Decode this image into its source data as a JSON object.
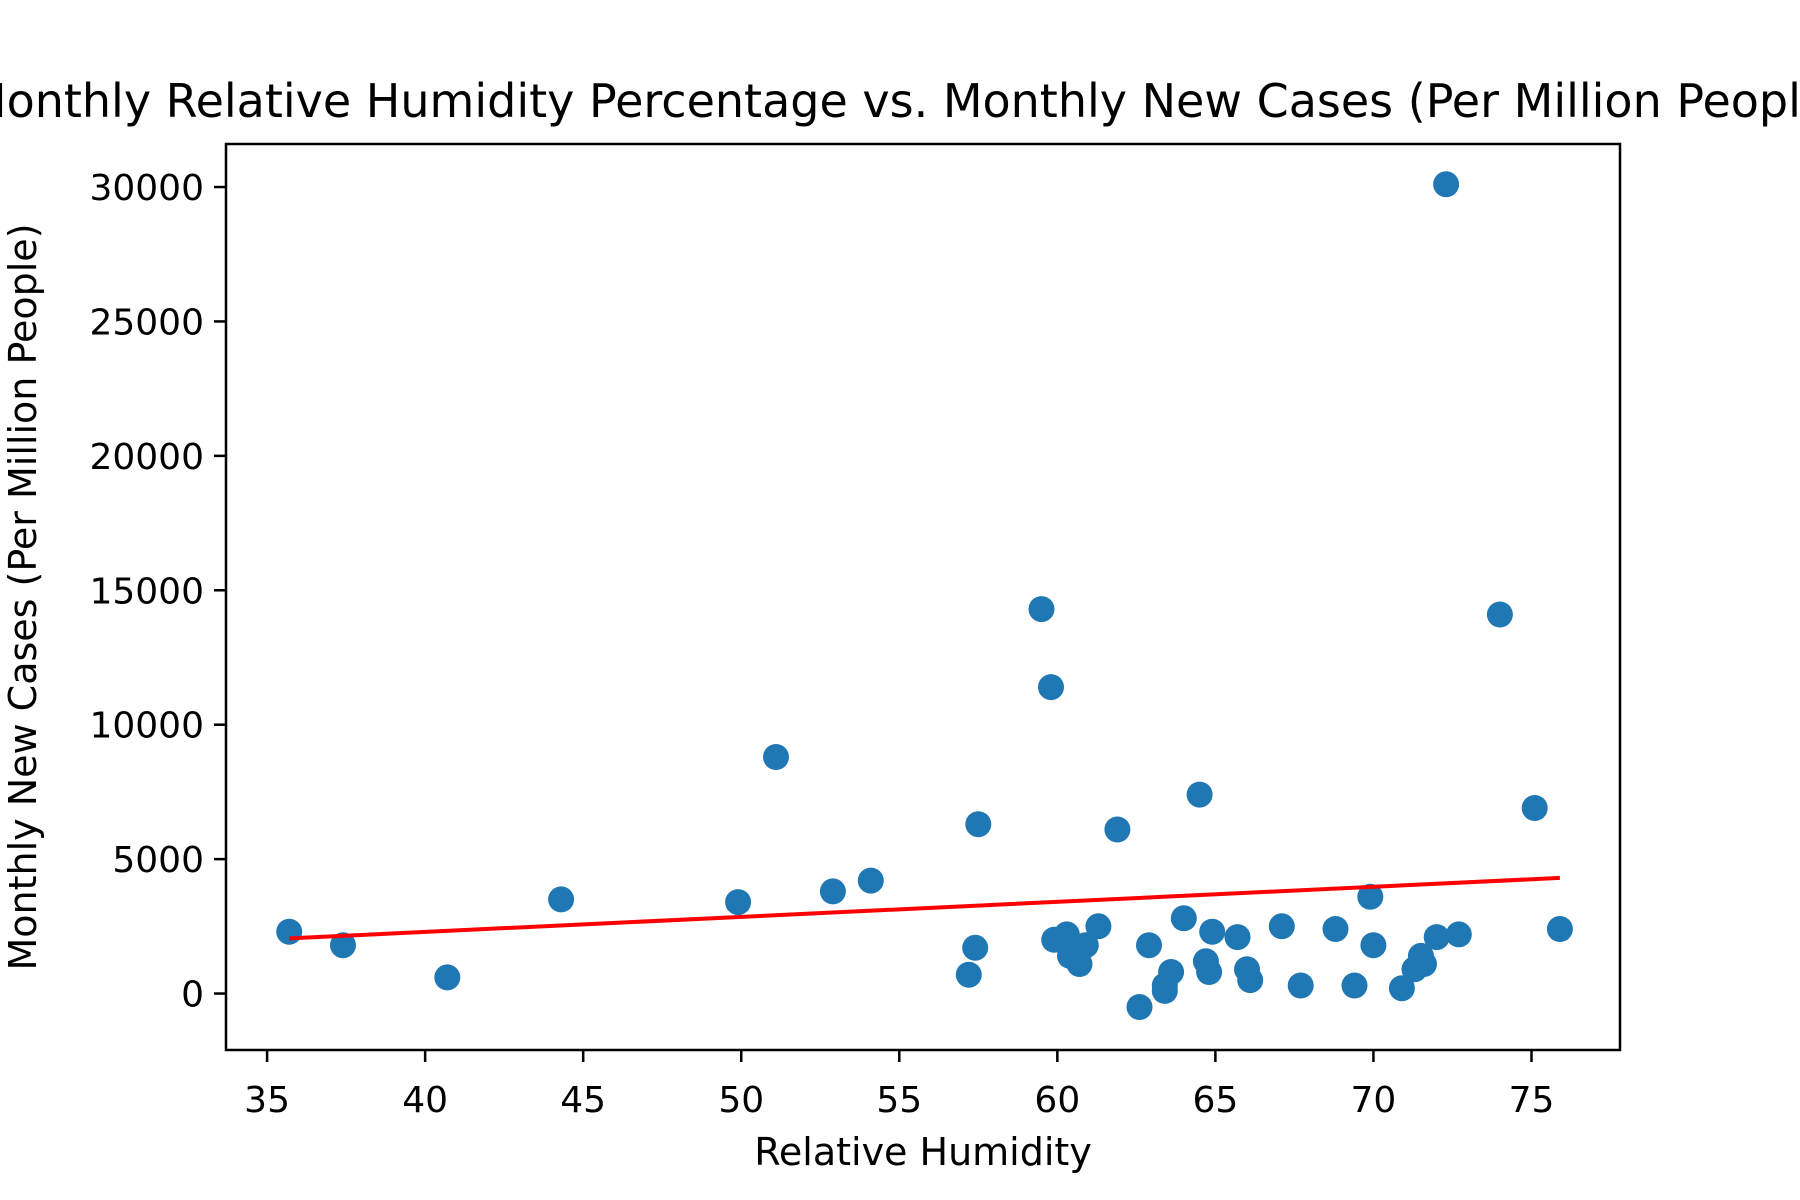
{
  "chart_data": {
    "type": "scatter",
    "title": "Monthly Relative Humidity Percentage vs. Monthly New Cases (Per Million People)",
    "xlabel": "Relative Humidity",
    "ylabel": "Monthly New Cases (Per Million People)",
    "xlim": [
      33.7,
      77.8
    ],
    "ylim": [
      -2100,
      31600
    ],
    "xticks": [
      35,
      40,
      45,
      50,
      55,
      60,
      65,
      70,
      75
    ],
    "yticks": [
      0,
      5000,
      10000,
      15000,
      20000,
      25000,
      30000
    ],
    "grid": false,
    "legend": "none",
    "colors": {
      "points": "#1f77b4",
      "trend_line": "#ff0000"
    },
    "series": [
      {
        "points": [
          {
            "x": 35.7,
            "y": 2300
          },
          {
            "x": 37.4,
            "y": 1800
          },
          {
            "x": 40.7,
            "y": 600
          },
          {
            "x": 44.3,
            "y": 3500
          },
          {
            "x": 49.9,
            "y": 3400
          },
          {
            "x": 51.1,
            "y": 8800
          },
          {
            "x": 52.9,
            "y": 3800
          },
          {
            "x": 54.1,
            "y": 4200
          },
          {
            "x": 57.2,
            "y": 700
          },
          {
            "x": 57.4,
            "y": 1700
          },
          {
            "x": 57.5,
            "y": 6300
          },
          {
            "x": 59.5,
            "y": 14300
          },
          {
            "x": 59.8,
            "y": 11400
          },
          {
            "x": 59.9,
            "y": 2000
          },
          {
            "x": 60.3,
            "y": 2200
          },
          {
            "x": 60.4,
            "y": 1400
          },
          {
            "x": 60.7,
            "y": 1100
          },
          {
            "x": 60.9,
            "y": 1800
          },
          {
            "x": 61.3,
            "y": 2500
          },
          {
            "x": 61.9,
            "y": 6100
          },
          {
            "x": 62.6,
            "y": -500
          },
          {
            "x": 62.9,
            "y": 1800
          },
          {
            "x": 63.4,
            "y": 100
          },
          {
            "x": 63.4,
            "y": 300
          },
          {
            "x": 63.6,
            "y": 800
          },
          {
            "x": 64.0,
            "y": 2800
          },
          {
            "x": 64.5,
            "y": 7400
          },
          {
            "x": 64.7,
            "y": 1200
          },
          {
            "x": 64.8,
            "y": 800
          },
          {
            "x": 64.9,
            "y": 2300
          },
          {
            "x": 65.7,
            "y": 2100
          },
          {
            "x": 66.0,
            "y": 900
          },
          {
            "x": 66.1,
            "y": 500
          },
          {
            "x": 67.1,
            "y": 2500
          },
          {
            "x": 67.7,
            "y": 300
          },
          {
            "x": 68.8,
            "y": 2400
          },
          {
            "x": 69.4,
            "y": 300
          },
          {
            "x": 69.9,
            "y": 3600
          },
          {
            "x": 70.0,
            "y": 1800
          },
          {
            "x": 70.9,
            "y": 200
          },
          {
            "x": 71.3,
            "y": 900
          },
          {
            "x": 71.5,
            "y": 1400
          },
          {
            "x": 71.6,
            "y": 1100
          },
          {
            "x": 72.0,
            "y": 2100
          },
          {
            "x": 72.3,
            "y": 30100
          },
          {
            "x": 72.7,
            "y": 2200
          },
          {
            "x": 74.0,
            "y": 14100
          },
          {
            "x": 75.1,
            "y": 6900
          },
          {
            "x": 75.9,
            "y": 2400
          }
        ]
      }
    ],
    "trend_line": {
      "x": [
        35.7,
        75.9
      ],
      "y": [
        2050,
        4300
      ]
    }
  }
}
